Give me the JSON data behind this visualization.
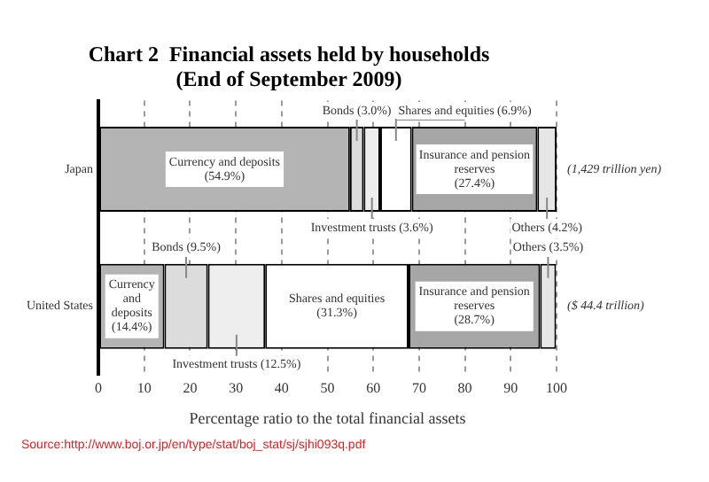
{
  "chart_data": {
    "type": "bar",
    "orientation": "horizontal",
    "stacked": true,
    "title": "Chart 2  Financial assets held by households\n(End of September 2009)",
    "xlabel": "Percentage ratio to the total financial assets",
    "categories": [
      "Japan",
      "United States"
    ],
    "series": [
      {
        "name": "Currency and deposits",
        "color": "#b4b4b4",
        "values": [
          54.9,
          14.4
        ],
        "value_labels": [
          "(54.9%)",
          "(14.4%)"
        ]
      },
      {
        "name": "Bonds",
        "color": "#dcdcdc",
        "values": [
          3.0,
          9.5
        ],
        "value_labels": [
          "(3.0%)",
          "(9.5%)"
        ]
      },
      {
        "name": "Investment trusts",
        "color": "#eeeeee",
        "values": [
          3.6,
          12.5
        ],
        "value_labels": [
          "(3.6%)",
          "(12.5%)"
        ]
      },
      {
        "name": "Shares and equities",
        "color": "#ffffff",
        "values": [
          6.9,
          31.3
        ],
        "value_labels": [
          "(6.9%)",
          "(31.3%)"
        ]
      },
      {
        "name": "Insurance and pension reserves",
        "color": "#a6a6a6",
        "values": [
          27.4,
          28.7
        ],
        "value_labels": [
          "(27.4%)",
          "(28.7%)"
        ]
      },
      {
        "name": "Others",
        "color": "#e6e6e6",
        "values": [
          4.2,
          3.5
        ],
        "value_labels": [
          "(4.2%)",
          "(3.5%)"
        ]
      }
    ],
    "xlim": [
      0,
      100
    ],
    "xticks": [
      0,
      10,
      20,
      30,
      40,
      50,
      60,
      70,
      80,
      90,
      100
    ],
    "grid": "x",
    "legend": false,
    "annotations": [
      "(1,429 trillion yen)",
      "($ 44.4 trillion)",
      "Source:http://www.boj.or.jp/en/type/stat/boj_stat/sj/sjhi093q.pdf"
    ]
  }
}
